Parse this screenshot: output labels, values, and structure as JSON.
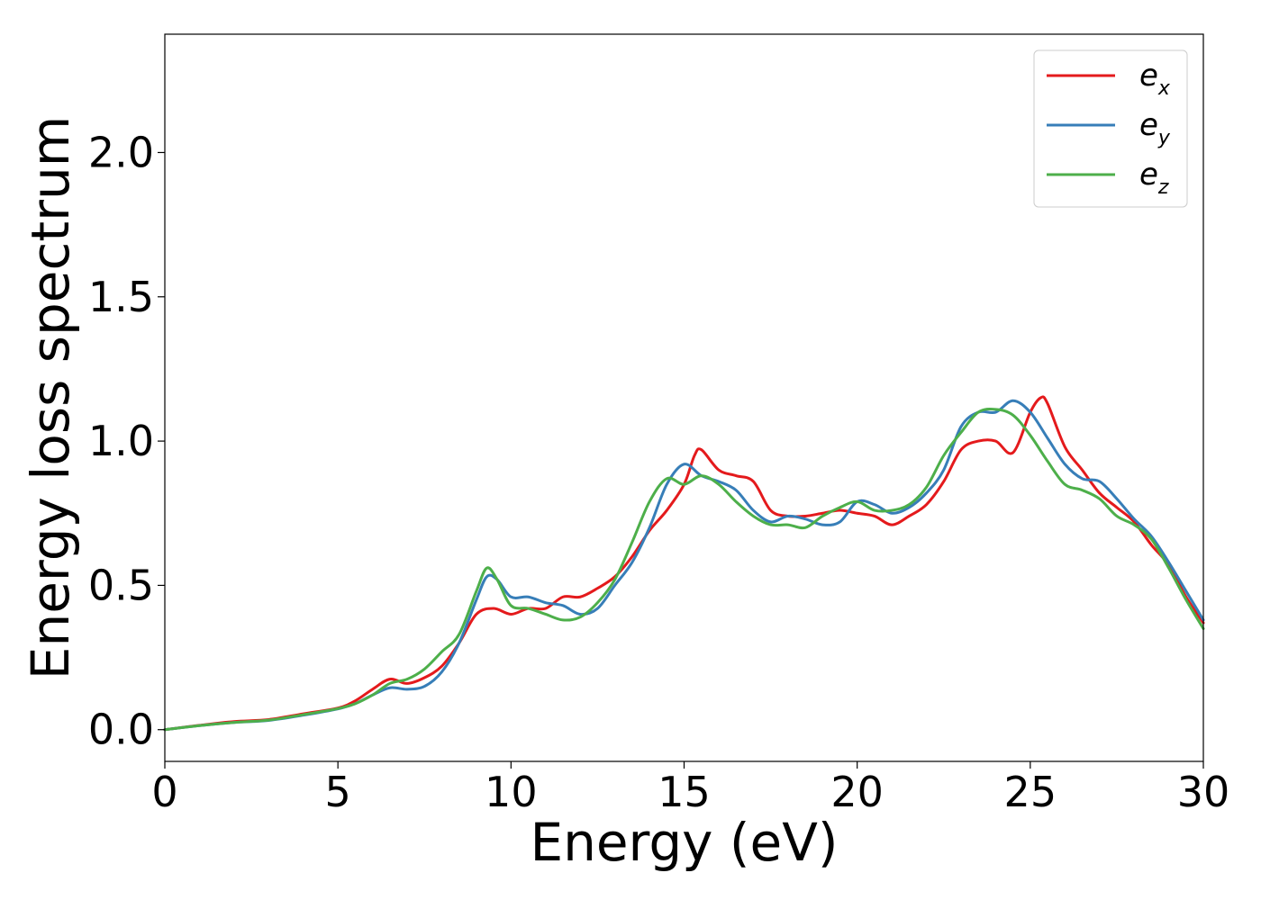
{
  "chart_data": {
    "type": "line",
    "xlabel": "Energy (eV)",
    "ylabel": "Energy loss spectrum",
    "xlim": [
      0,
      30
    ],
    "ylim": [
      -0.11,
      2.41
    ],
    "xticks": [
      0,
      5,
      10,
      15,
      20,
      25,
      30
    ],
    "xtick_labels": [
      "0",
      "5",
      "10",
      "15",
      "20",
      "25",
      "30"
    ],
    "yticks": [
      0.0,
      0.5,
      1.0,
      1.5,
      2.0
    ],
    "ytick_labels": [
      "0.0",
      "0.5",
      "1.0",
      "1.5",
      "2.0"
    ],
    "grid": false,
    "legend_position": "top-right",
    "series": [
      {
        "name": "e_x",
        "label_base": "e",
        "label_sub": "x",
        "color": "#e41a1c",
        "x": [
          0,
          1,
          2,
          3,
          4,
          5,
          5.5,
          6,
          6.5,
          7,
          7.5,
          8,
          8.5,
          9,
          9.5,
          10,
          10.5,
          11,
          11.5,
          12,
          12.5,
          13,
          13.5,
          14,
          14.5,
          15,
          15.3,
          15.5,
          16,
          16.5,
          17,
          17.5,
          18,
          18.5,
          19,
          19.5,
          20,
          20.5,
          21,
          21.5,
          22,
          22.5,
          23,
          23.5,
          24,
          24.5,
          25,
          25.3,
          25.5,
          26,
          26.5,
          27,
          27.5,
          28,
          28.5,
          29,
          29.5,
          30
        ],
        "y": [
          0,
          0.015,
          0.028,
          0.035,
          0.055,
          0.075,
          0.1,
          0.14,
          0.175,
          0.16,
          0.18,
          0.22,
          0.3,
          0.4,
          0.42,
          0.4,
          0.42,
          0.42,
          0.46,
          0.46,
          0.49,
          0.53,
          0.6,
          0.69,
          0.76,
          0.85,
          0.95,
          0.97,
          0.9,
          0.88,
          0.86,
          0.76,
          0.74,
          0.74,
          0.75,
          0.76,
          0.75,
          0.74,
          0.71,
          0.74,
          0.78,
          0.86,
          0.97,
          1.0,
          1.0,
          0.96,
          1.1,
          1.15,
          1.13,
          0.98,
          0.9,
          0.82,
          0.77,
          0.72,
          0.64,
          0.57,
          0.46,
          0.37
        ]
      },
      {
        "name": "e_y",
        "label_base": "e",
        "label_sub": "y",
        "color": "#377eb8",
        "x": [
          0,
          1,
          2,
          3,
          4,
          5,
          5.5,
          6,
          6.5,
          7,
          7.5,
          8,
          8.5,
          9,
          9.3,
          9.6,
          10,
          10.5,
          11,
          11.5,
          12,
          12.5,
          13,
          13.5,
          14,
          14.5,
          15,
          15.5,
          16,
          16.5,
          17,
          17.5,
          18,
          18.5,
          19,
          19.5,
          20,
          20.5,
          21,
          21.5,
          22,
          22.5,
          23,
          23.5,
          24,
          24.5,
          25,
          25.5,
          26,
          26.5,
          27,
          27.5,
          28,
          28.5,
          29,
          29.5,
          30
        ],
        "y": [
          0,
          0.014,
          0.025,
          0.032,
          0.05,
          0.072,
          0.09,
          0.12,
          0.145,
          0.14,
          0.15,
          0.2,
          0.3,
          0.45,
          0.53,
          0.52,
          0.46,
          0.46,
          0.44,
          0.43,
          0.4,
          0.42,
          0.5,
          0.58,
          0.7,
          0.85,
          0.92,
          0.88,
          0.86,
          0.83,
          0.76,
          0.72,
          0.74,
          0.73,
          0.71,
          0.72,
          0.79,
          0.78,
          0.75,
          0.77,
          0.82,
          0.9,
          1.05,
          1.1,
          1.1,
          1.14,
          1.1,
          1.01,
          0.92,
          0.87,
          0.86,
          0.8,
          0.73,
          0.67,
          0.58,
          0.48,
          0.38
        ]
      },
      {
        "name": "e_z",
        "label_base": "e",
        "label_sub": "z",
        "color": "#4daf4a",
        "x": [
          0,
          1,
          2,
          3,
          4,
          5,
          5.5,
          6,
          6.5,
          7,
          7.5,
          8,
          8.5,
          9,
          9.3,
          9.6,
          10,
          10.5,
          11,
          11.5,
          12,
          12.5,
          13,
          13.5,
          14,
          14.5,
          15,
          15.5,
          16,
          16.5,
          17,
          17.5,
          18,
          18.5,
          19,
          19.5,
          20,
          20.5,
          21,
          21.5,
          22,
          22.5,
          23,
          23.5,
          24,
          24.5,
          25,
          25.5,
          26,
          26.5,
          27,
          27.5,
          28,
          28.5,
          29,
          29.5,
          30
        ],
        "y": [
          0,
          0.014,
          0.025,
          0.033,
          0.052,
          0.073,
          0.09,
          0.12,
          0.16,
          0.175,
          0.21,
          0.27,
          0.33,
          0.48,
          0.56,
          0.52,
          0.43,
          0.42,
          0.4,
          0.38,
          0.39,
          0.44,
          0.52,
          0.65,
          0.79,
          0.87,
          0.85,
          0.88,
          0.85,
          0.79,
          0.74,
          0.71,
          0.71,
          0.7,
          0.74,
          0.77,
          0.79,
          0.76,
          0.76,
          0.78,
          0.84,
          0.95,
          1.03,
          1.1,
          1.11,
          1.09,
          1.02,
          0.93,
          0.85,
          0.83,
          0.8,
          0.74,
          0.71,
          0.66,
          0.56,
          0.45,
          0.35
        ]
      }
    ]
  }
}
